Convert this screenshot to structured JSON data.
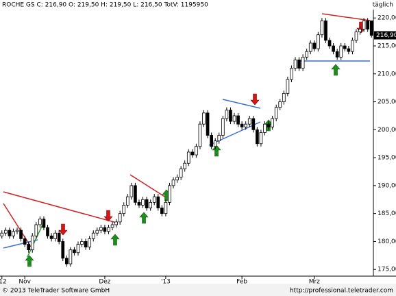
{
  "chart_data": {
    "type": "candlestick",
    "title": "ROCHE GS C: 216,90 O: 219,50 H: 219,50 L: 216,50 TotV: 1195950",
    "period": "täglich",
    "last_price_label": "216,90",
    "footer_left": "© 2013 TeleTrader Software GmbH",
    "footer_right": "http://professional.teletrader.com",
    "up_color": "#ffffff",
    "down_color": "#000000",
    "categories": [
      "'12",
      null,
      null,
      null,
      null,
      null,
      "Nov",
      null,
      null,
      null,
      null,
      null,
      null,
      null,
      null,
      null,
      null,
      null,
      null,
      null,
      null,
      null,
      null,
      null,
      null,
      null,
      null,
      "Dez",
      null,
      null,
      null,
      null,
      null,
      null,
      null,
      null,
      null,
      null,
      null,
      null,
      null,
      null,
      null,
      "'13",
      null,
      null,
      null,
      null,
      null,
      null,
      null,
      null,
      null,
      null,
      null,
      null,
      null,
      null,
      null,
      null,
      null,
      null,
      null,
      "Feb",
      null,
      null,
      null,
      null,
      null,
      null,
      null,
      null,
      null,
      null,
      null,
      null,
      null,
      null,
      null,
      null,
      null,
      null,
      "Mrz",
      null,
      null,
      null,
      null,
      null,
      null,
      null,
      null,
      null,
      null,
      null,
      null,
      null,
      null,
      null
    ],
    "open": [
      181,
      181.5,
      182,
      181,
      181.8,
      182,
      180.5,
      179.5,
      178.5,
      181,
      183,
      184,
      182.5,
      181,
      180.5,
      181.5,
      180,
      177,
      176,
      178.5,
      178,
      179.5,
      180,
      179,
      180.5,
      181.5,
      182,
      182.5,
      181.8,
      182.5,
      183,
      183.5,
      185,
      186.5,
      188,
      190,
      187,
      186.5,
      187.5,
      186,
      187,
      188,
      186,
      185,
      187,
      190,
      191,
      191.5,
      193,
      194,
      196,
      195.5,
      197,
      201,
      203,
      199,
      197,
      198,
      199,
      202,
      203.5,
      201.5,
      202.5,
      201,
      200.5,
      201,
      202,
      200,
      197.5,
      199.5,
      201,
      200.5,
      202,
      204,
      205,
      206.5,
      209,
      211,
      212.5,
      211,
      213,
      214,
      215.5,
      214.5,
      217,
      219.5,
      216,
      215,
      214,
      213,
      215,
      214.5,
      214,
      216,
      217.5,
      218,
      219.5,
      219.5
    ],
    "high": [
      182,
      182.5,
      182.5,
      182.3,
      182.5,
      182.5,
      181,
      180,
      181.5,
      183.5,
      184.5,
      184.5,
      183,
      181.5,
      182,
      182,
      180.5,
      177.5,
      179,
      179,
      180,
      180.5,
      180.5,
      181,
      182,
      182.5,
      183,
      183,
      183,
      183.5,
      184,
      185.5,
      187,
      188.5,
      190.5,
      190.5,
      187.5,
      188,
      188,
      187.5,
      188.5,
      188.5,
      186.5,
      187.5,
      190.5,
      191.5,
      192,
      193.5,
      194.5,
      196.5,
      196.5,
      197.5,
      201.5,
      203.5,
      203.5,
      199.5,
      198.5,
      199.5,
      202.5,
      204,
      204,
      203,
      203,
      201.5,
      201.5,
      202.5,
      202.5,
      200.5,
      200,
      201.5,
      201.5,
      202.5,
      204.5,
      205.5,
      207,
      209.5,
      211.5,
      213,
      213,
      213.5,
      214.5,
      216,
      216,
      217.5,
      220,
      220,
      216.5,
      215.5,
      214.5,
      215.5,
      215.5,
      215,
      216.5,
      218,
      218.5,
      220,
      220,
      219.5
    ],
    "low": [
      180.5,
      181,
      180.5,
      180.5,
      181.3,
      180,
      179,
      178,
      178,
      180.5,
      182.5,
      182,
      180.5,
      180,
      180,
      179.5,
      176.5,
      175.5,
      175.5,
      177.5,
      177.5,
      179,
      178.5,
      178.5,
      180,
      181,
      181.5,
      181.3,
      181.3,
      182,
      182.5,
      183,
      184.5,
      186,
      187.5,
      186.5,
      186,
      186,
      185.5,
      185.5,
      186.5,
      185.5,
      184.5,
      184.5,
      186.5,
      189.5,
      190.5,
      191,
      192.5,
      193.5,
      195,
      195,
      196.5,
      200.5,
      198.5,
      196.5,
      196.5,
      197.5,
      198.5,
      201.5,
      201,
      201,
      200.5,
      200,
      200,
      200.5,
      199.5,
      197,
      197,
      199,
      200,
      200,
      201.5,
      203.5,
      204.5,
      206,
      208.5,
      210.5,
      210.5,
      210.5,
      212.5,
      213.5,
      214,
      214,
      216.5,
      215.5,
      214.5,
      213.5,
      212.5,
      212.5,
      214,
      213.5,
      213.5,
      215.5,
      217,
      217.5,
      217.5,
      216.5
    ],
    "close": [
      181.5,
      182,
      181,
      181.8,
      182,
      180.5,
      179.5,
      178.5,
      181,
      183,
      184,
      182.5,
      181,
      180.5,
      181.5,
      180,
      177,
      176,
      178.5,
      178,
      179.5,
      180,
      179,
      180.5,
      181.5,
      182,
      182.5,
      181.8,
      182.5,
      183,
      183.5,
      185,
      186.5,
      188,
      190,
      187,
      186.5,
      187.5,
      186,
      187,
      188,
      186,
      185,
      187,
      190,
      191,
      191.5,
      193,
      194,
      196,
      195.5,
      197,
      201,
      203,
      199,
      197,
      198,
      199,
      202,
      203.5,
      201.5,
      202.5,
      201,
      200.5,
      201,
      202,
      200,
      197.5,
      199.5,
      201,
      200.5,
      202,
      204,
      205,
      206.5,
      209,
      211,
      212.5,
      211,
      213,
      214,
      215.5,
      214.5,
      217,
      219.5,
      216,
      215,
      214,
      213,
      215,
      214.5,
      214,
      216,
      217.5,
      218,
      219.5,
      218,
      216.9
    ],
    "ylim": [
      173.8,
      221.5
    ],
    "yticks": [
      {
        "value": 175,
        "label": "175,00"
      },
      {
        "value": 180,
        "label": "180,00"
      },
      {
        "value": 185,
        "label": "185,00"
      },
      {
        "value": 190,
        "label": "190,00"
      },
      {
        "value": 195,
        "label": "195,00"
      },
      {
        "value": 200,
        "label": "200,00"
      },
      {
        "value": 205,
        "label": "205,00"
      },
      {
        "value": 210,
        "label": "210,00"
      },
      {
        "value": 215,
        "label": "215,00"
      },
      {
        "value": 220,
        "label": "220,00"
      }
    ]
  }
}
